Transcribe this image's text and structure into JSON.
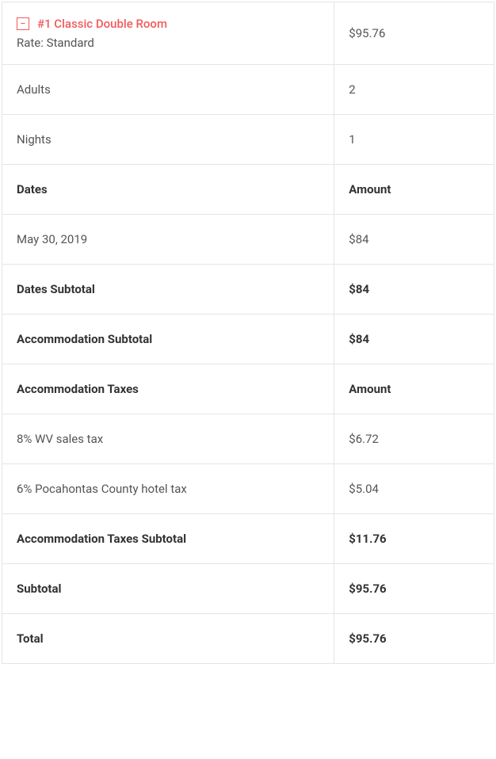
{
  "room": {
    "title": "#1 Classic Double Room",
    "rate_label": "Rate: Standard",
    "price": "$95.76"
  },
  "details": {
    "adults_label": "Adults",
    "adults_value": "2",
    "nights_label": "Nights",
    "nights_value": "1"
  },
  "dates_header": {
    "left": "Dates",
    "right": "Amount"
  },
  "date_rows": [
    {
      "date": "May 30, 2019",
      "amount": "$84"
    }
  ],
  "dates_subtotal": {
    "label": "Dates Subtotal",
    "amount": "$84"
  },
  "accommodation_subtotal": {
    "label": "Accommodation Subtotal",
    "amount": "$84"
  },
  "taxes_header": {
    "left": "Accommodation Taxes",
    "right": "Amount"
  },
  "tax_rows": [
    {
      "label": "8% WV sales tax",
      "amount": "$6.72"
    },
    {
      "label": "6% Pocahontas County hotel tax",
      "amount": "$5.04"
    }
  ],
  "taxes_subtotal": {
    "label": "Accommodation Taxes Subtotal",
    "amount": "$11.76"
  },
  "subtotal": {
    "label": "Subtotal",
    "amount": "$95.76"
  },
  "total": {
    "label": "Total",
    "amount": "$95.76"
  },
  "colors": {
    "accent": "#f15b5b",
    "border": "#e5e5e5",
    "text": "#555",
    "text_bold": "#333",
    "background": "#ffffff"
  }
}
